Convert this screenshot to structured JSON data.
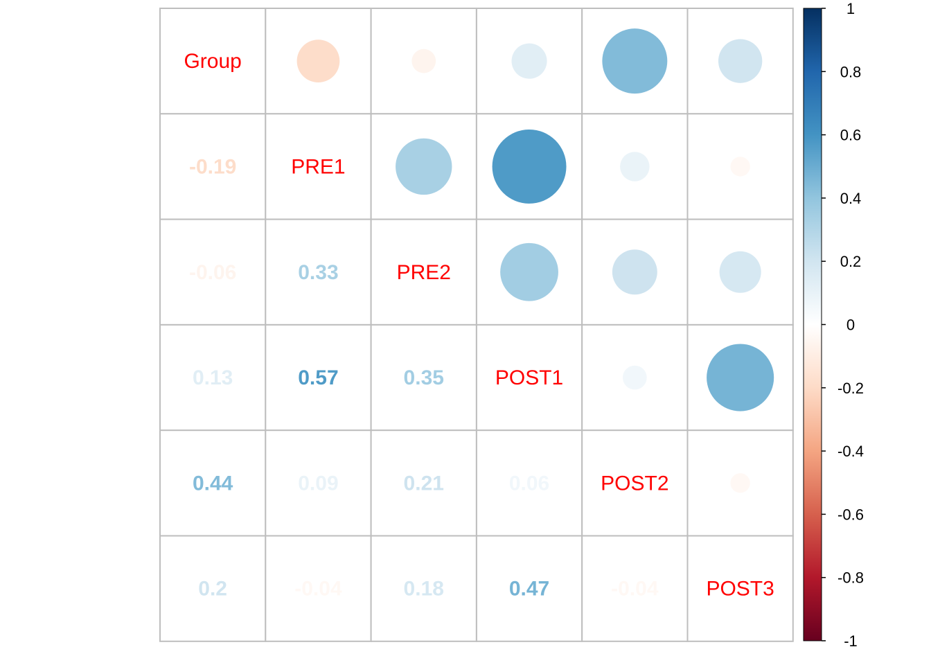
{
  "chart_data": {
    "type": "heatmap",
    "variables": [
      "Group",
      "PRE1",
      "PRE2",
      "POST1",
      "POST2",
      "POST3"
    ],
    "upper_style": "circle",
    "lower_style": "number",
    "diagonal": "variable names",
    "matrix": [
      [
        1,
        -0.19,
        -0.06,
        0.13,
        0.44,
        0.2
      ],
      [
        -0.19,
        1,
        0.33,
        0.57,
        0.09,
        -0.04
      ],
      [
        -0.06,
        0.33,
        1,
        0.35,
        0.21,
        0.18
      ],
      [
        0.13,
        0.57,
        0.35,
        1,
        0.06,
        0.47
      ],
      [
        0.44,
        0.09,
        0.21,
        0.06,
        1,
        -0.04
      ],
      [
        0.2,
        -0.04,
        0.18,
        0.47,
        -0.04,
        1
      ]
    ],
    "lower_labels": [
      [
        "",
        "",
        "",
        "",
        "",
        ""
      ],
      [
        "-0.19",
        "",
        "",
        "",
        "",
        ""
      ],
      [
        "-0.06",
        "0.33",
        "",
        "",
        "",
        ""
      ],
      [
        "0.13",
        "0.57",
        "0.35",
        "",
        "",
        ""
      ],
      [
        "0.44",
        "0.09",
        "0.21",
        "0.06",
        "",
        ""
      ],
      [
        "0.2",
        "-0.04",
        "0.18",
        "0.47",
        "-0.04",
        ""
      ]
    ],
    "colorbar": {
      "range": [
        -1,
        1
      ],
      "placement": "right",
      "ticks": [
        1,
        0.8,
        0.6,
        0.4,
        0.2,
        0,
        -0.2,
        -0.4,
        -0.6,
        -0.8,
        -1
      ],
      "tick_labels": [
        "1",
        "0.8",
        "0.6",
        "0.4",
        "0.2",
        "0",
        "-0.2",
        "-0.4",
        "-0.6",
        "-0.8",
        "-1"
      ]
    },
    "palette": [
      "#67001F",
      "#B2182B",
      "#D6604D",
      "#F4A582",
      "#FDDBC7",
      "#FFFFFF",
      "#D1E5F0",
      "#92C5DE",
      "#4393C3",
      "#2166AC",
      "#053061"
    ],
    "diagonal_label_color": "#FF0000",
    "grid_color": "#BEBEBE"
  }
}
